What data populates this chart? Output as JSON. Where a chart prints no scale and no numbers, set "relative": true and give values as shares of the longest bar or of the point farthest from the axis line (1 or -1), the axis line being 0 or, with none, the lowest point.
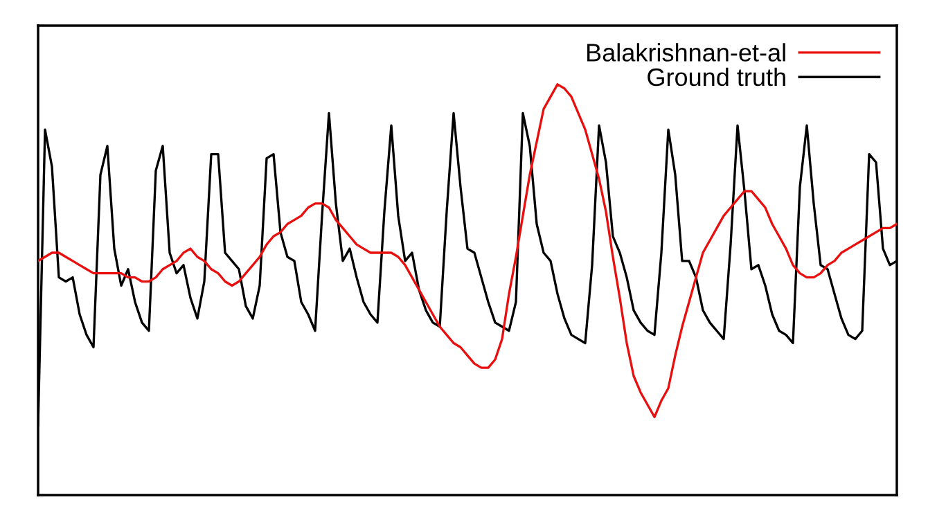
{
  "chart_data": {
    "type": "line",
    "relative": true,
    "legend": "top right",
    "marker": "none",
    "line_style": "solid",
    "categories": [
      null,
      null,
      null,
      null,
      null,
      null,
      null,
      null,
      null,
      null,
      null,
      null,
      null,
      null,
      null,
      null,
      null,
      null,
      null,
      null,
      null,
      null,
      null,
      null,
      null,
      null,
      null,
      null,
      null,
      null,
      null,
      null,
      null,
      null,
      null,
      null,
      null,
      null,
      null,
      null,
      null,
      null,
      null,
      null,
      null,
      null,
      null,
      null,
      null,
      null,
      null,
      null,
      null,
      null,
      null,
      null,
      null,
      null,
      null,
      null,
      null,
      null,
      null,
      null,
      null,
      null,
      null,
      null,
      null,
      null,
      null,
      null,
      null,
      null,
      null,
      null,
      null,
      null,
      null,
      null,
      null,
      null,
      null,
      null,
      null,
      null,
      null,
      null,
      null,
      null,
      null,
      null,
      null,
      null,
      null,
      null,
      null,
      null,
      null,
      null,
      null,
      null,
      null,
      null,
      null,
      null,
      null,
      null,
      null,
      null,
      null,
      null,
      null,
      null,
      null,
      null,
      null,
      null,
      null,
      null,
      null,
      null,
      null,
      null,
      null
    ],
    "series": [
      {
        "name": "Balakrishnan-et-al",
        "color": "#e8100f",
        "values": [
          0.57,
          0.58,
          0.59,
          0.59,
          0.58,
          0.57,
          0.56,
          0.55,
          0.54,
          0.54,
          0.54,
          0.54,
          0.54,
          0.53,
          0.53,
          0.52,
          0.52,
          0.53,
          0.55,
          0.56,
          0.57,
          0.59,
          0.6,
          0.58,
          0.57,
          0.55,
          0.54,
          0.52,
          0.51,
          0.52,
          0.54,
          0.56,
          0.58,
          0.61,
          0.63,
          0.64,
          0.66,
          0.67,
          0.68,
          0.7,
          0.71,
          0.71,
          0.7,
          0.67,
          0.65,
          0.63,
          0.61,
          0.6,
          0.59,
          0.59,
          0.59,
          0.59,
          0.58,
          0.56,
          0.53,
          0.5,
          0.47,
          0.44,
          0.41,
          0.39,
          0.37,
          0.36,
          0.34,
          0.32,
          0.31,
          0.31,
          0.33,
          0.38,
          0.49,
          0.58,
          0.68,
          0.78,
          0.86,
          0.94,
          0.97,
          1.0,
          0.99,
          0.97,
          0.93,
          0.89,
          0.83,
          0.77,
          0.69,
          0.58,
          0.48,
          0.37,
          0.29,
          0.25,
          0.22,
          0.19,
          0.23,
          0.26,
          0.34,
          0.41,
          0.47,
          0.53,
          0.59,
          0.62,
          0.65,
          0.68,
          0.7,
          0.72,
          0.74,
          0.74,
          0.72,
          0.7,
          0.66,
          0.63,
          0.6,
          0.56,
          0.54,
          0.53,
          0.53,
          0.54,
          0.56,
          0.57,
          0.59,
          0.6,
          0.61,
          0.62,
          0.63,
          0.64,
          0.65,
          0.65,
          0.66
        ]
      },
      {
        "name": "Ground truth",
        "color": "#000000",
        "values": [
          0.17,
          0.89,
          0.8,
          0.53,
          0.52,
          0.53,
          0.44,
          0.39,
          0.36,
          0.78,
          0.85,
          0.6,
          0.51,
          0.55,
          0.47,
          0.42,
          0.4,
          0.79,
          0.85,
          0.59,
          0.54,
          0.56,
          0.48,
          0.43,
          0.52,
          0.83,
          0.83,
          0.59,
          0.57,
          0.55,
          0.46,
          0.43,
          0.51,
          0.82,
          0.83,
          0.64,
          0.58,
          0.57,
          0.47,
          0.44,
          0.4,
          0.68,
          0.93,
          0.71,
          0.57,
          0.6,
          0.53,
          0.47,
          0.44,
          0.42,
          0.69,
          0.9,
          0.68,
          0.57,
          0.59,
          0.5,
          0.45,
          0.42,
          0.41,
          0.69,
          0.93,
          0.75,
          0.6,
          0.59,
          0.53,
          0.47,
          0.42,
          0.41,
          0.4,
          0.47,
          0.93,
          0.85,
          0.66,
          0.59,
          0.57,
          0.49,
          0.43,
          0.39,
          0.38,
          0.37,
          0.56,
          0.9,
          0.81,
          0.63,
          0.59,
          0.53,
          0.45,
          0.42,
          0.4,
          0.39,
          0.59,
          0.89,
          0.78,
          0.57,
          0.57,
          0.53,
          0.45,
          0.42,
          0.4,
          0.38,
          0.61,
          0.9,
          0.74,
          0.55,
          0.56,
          0.51,
          0.44,
          0.4,
          0.39,
          0.37,
          0.75,
          0.9,
          0.71,
          0.56,
          0.55,
          0.49,
          0.43,
          0.39,
          0.38,
          0.4,
          0.83,
          0.81,
          0.6,
          0.56,
          0.57
        ]
      }
    ]
  }
}
